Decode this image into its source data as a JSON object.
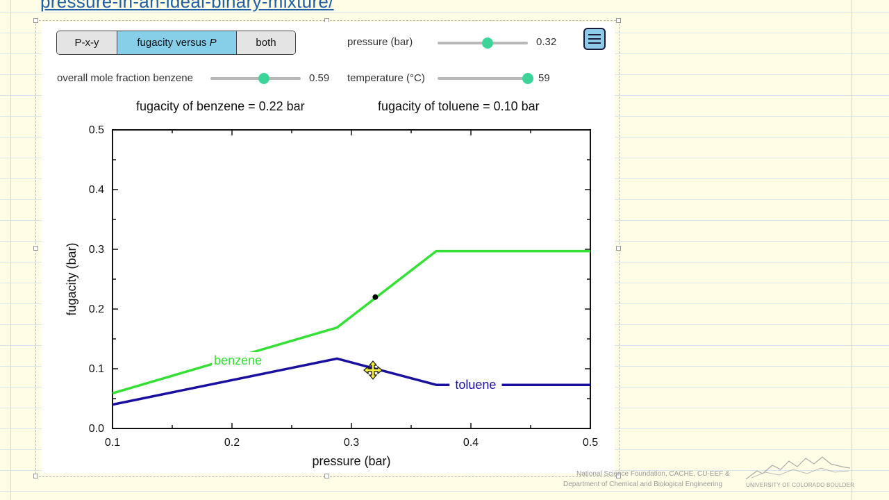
{
  "header": {
    "url_fragment": "pressure-in-an-ideal-binary-mixture/"
  },
  "tabs": [
    {
      "label": "P-x-y",
      "active": false
    },
    {
      "label": "fugacity versus P",
      "active": true
    },
    {
      "label": "both",
      "active": false
    }
  ],
  "controls": {
    "pressure": {
      "label": "pressure (bar)",
      "value": "0.32",
      "fraction": 0.55
    },
    "mole_fraction": {
      "label": "overall mole fraction benzene",
      "value": "0.59",
      "fraction": 0.59
    },
    "temperature": {
      "label": "temperature (°C)",
      "value": "59",
      "fraction": 1.0
    }
  },
  "readouts": {
    "benzene": "fugacity of benzene = 0.22 bar",
    "toluene": "fugacity of toluene = 0.10 bar"
  },
  "chart_data": {
    "type": "line",
    "xlabel": "pressure (bar)",
    "ylabel": "fugacity (bar)",
    "xlim": [
      0.1,
      0.5
    ],
    "ylim": [
      0.0,
      0.5
    ],
    "xticks": [
      "0.1",
      "0.2",
      "0.3",
      "0.4",
      "0.5"
    ],
    "yticks": [
      "0.0",
      "0.1",
      "0.2",
      "0.3",
      "0.4",
      "0.5"
    ],
    "grid": false,
    "series": [
      {
        "name": "benzene",
        "color": "#33e033",
        "x": [
          0.1,
          0.288,
          0.371,
          0.5
        ],
        "y": [
          0.059,
          0.169,
          0.297,
          0.297
        ]
      },
      {
        "name": "toluene",
        "color": "#1a10a0",
        "x": [
          0.1,
          0.288,
          0.371,
          0.5
        ],
        "y": [
          0.04,
          0.117,
          0.073,
          0.073
        ]
      }
    ],
    "marker": {
      "x": 0.32,
      "y": 0.22
    }
  },
  "footer": {
    "credit_line1": "National Science Foundation, CACHE, CU-EEF &",
    "credit_line2": "Department of Chemical and Biological Engineering",
    "logo_text": "UNIVERSITY OF COLORADO BOULDER"
  },
  "colors": {
    "accent": "#3dd49a",
    "active_tab": "#87cfe9"
  }
}
